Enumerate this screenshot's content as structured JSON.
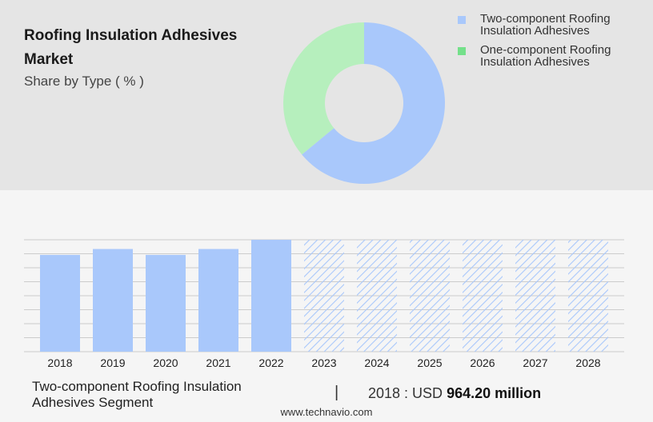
{
  "header": {
    "title": "Roofing Insulation Adhesives Market",
    "subtitle": "Share by Type ( % )"
  },
  "legend": {
    "items": [
      {
        "label": "Two-component Roofing Insulation Adhesives",
        "color": "#a9c8fb"
      },
      {
        "label": "One-component Roofing Insulation Adhesives",
        "color": "#74e08a"
      }
    ]
  },
  "footer": {
    "segment_label": "Two-component Roofing Insulation Adhesives Segment",
    "divider": "|",
    "year_prefix": "2018 : USD",
    "value": "964.20 million",
    "source": "www.technavio.com"
  },
  "chart_data": [
    {
      "type": "pie",
      "donut": true,
      "slices": [
        {
          "label": "Two-component Roofing Insulation Adhesives",
          "value": 64,
          "color": "#a9c8fb"
        },
        {
          "label": "One-component Roofing Insulation Adhesives",
          "value": 36,
          "color": "#b6efbd"
        }
      ]
    },
    {
      "type": "bar",
      "categories": [
        "2018",
        "2019",
        "2020",
        "2021",
        "2022",
        "2023",
        "2024",
        "2025",
        "2026",
        "2027",
        "2028"
      ],
      "values": [
        964.2,
        1023,
        964.2,
        1023,
        1115,
        1115,
        1115,
        1115,
        1115,
        1115,
        1115
      ],
      "forecast_from": "2023",
      "ylim": [
        0,
        1115
      ],
      "grid": true,
      "bar_color": "#a9c8fb",
      "forecast_pattern": "diagonal-hatch"
    }
  ]
}
